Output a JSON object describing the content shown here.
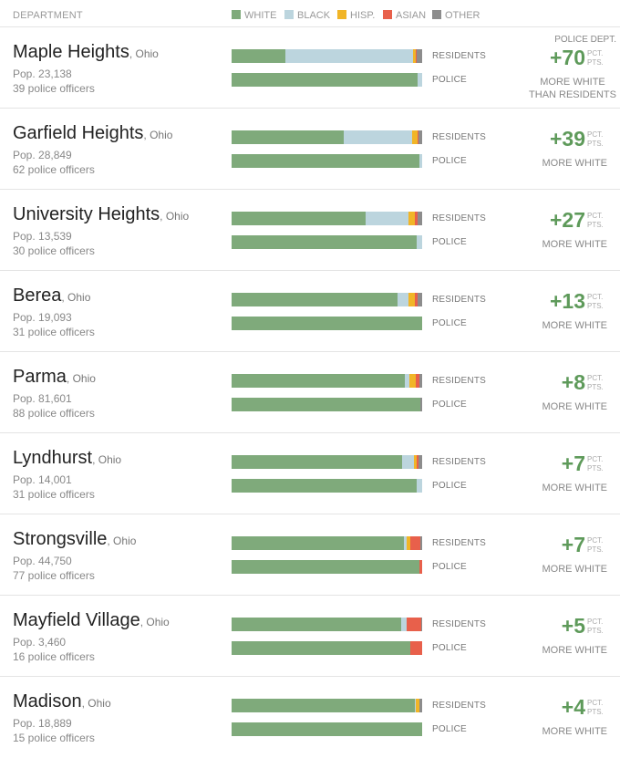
{
  "header": {
    "department_label": "DEPARTMENT"
  },
  "legend": [
    {
      "name": "WHITE",
      "color": "#7faa7b"
    },
    {
      "name": "BLACK",
      "color": "#bcd5de"
    },
    {
      "name": "HISP.",
      "color": "#f1b527"
    },
    {
      "name": "ASIAN",
      "color": "#e8604b"
    },
    {
      "name": "OTHER",
      "color": "#8c8c8c"
    }
  ],
  "labels": {
    "residents": "RESIDENTS",
    "police": "POLICE",
    "unit": "PCT. PTS.",
    "top_note": "POLICE DEPT.",
    "more_white": "MORE WHITE",
    "than_residents": "THAN RESIDENTS"
  },
  "chart_data": {
    "type": "bar",
    "orientation": "horizontal",
    "stacked": "100%",
    "series_order": [
      "WHITE",
      "BLACK",
      "HISP.",
      "ASIAN",
      "OTHER"
    ],
    "departments": [
      {
        "city": "Maple Heights",
        "state": ", Ohio",
        "pop": "Pop. 23,138",
        "officers": "39 police officers",
        "residents": [
          28,
          67,
          1.5,
          0.5,
          3
        ],
        "police": [
          97.5,
          2.5,
          0,
          0,
          0
        ],
        "gap": "+70"
      },
      {
        "city": "Garfield Heights",
        "state": ", Ohio",
        "pop": "Pop. 28,849",
        "officers": "62 police officers",
        "residents": [
          59,
          35.5,
          3,
          0.5,
          2
        ],
        "police": [
          98.5,
          1.5,
          0,
          0,
          0
        ],
        "gap": "+39"
      },
      {
        "city": "University Heights",
        "state": ", Ohio",
        "pop": "Pop. 13,539",
        "officers": "30 police officers",
        "residents": [
          70.5,
          22.5,
          3,
          1.5,
          2.5
        ],
        "police": [
          97,
          3,
          0,
          0,
          0
        ],
        "gap": "+27"
      },
      {
        "city": "Berea",
        "state": ", Ohio",
        "pop": "Pop. 19,093",
        "officers": "31 police officers",
        "residents": [
          87,
          6,
          3,
          1.5,
          2.5
        ],
        "police": [
          100,
          0,
          0,
          0,
          0
        ],
        "gap": "+13"
      },
      {
        "city": "Parma",
        "state": ", Ohio",
        "pop": "Pop. 81,601",
        "officers": "88 police officers",
        "residents": [
          91,
          2.5,
          3,
          2,
          1.5
        ],
        "police": [
          99,
          0,
          0,
          0,
          1
        ],
        "gap": "+8"
      },
      {
        "city": "Lyndhurst",
        "state": ", Ohio",
        "pop": "Pop. 14,001",
        "officers": "31 police officers",
        "residents": [
          89.5,
          6,
          1.5,
          1,
          2
        ],
        "police": [
          97,
          3,
          0,
          0,
          0
        ],
        "gap": "+7"
      },
      {
        "city": "Strongsville",
        "state": ", Ohio",
        "pop": "Pop. 44,750",
        "officers": "77 police officers",
        "residents": [
          90.5,
          1.5,
          2,
          5,
          1
        ],
        "police": [
          98.5,
          0,
          0,
          1.5,
          0
        ],
        "gap": "+7"
      },
      {
        "city": "Mayfield Village",
        "state": ", Ohio",
        "pop": "Pop. 3,460",
        "officers": "16 police officers",
        "residents": [
          89,
          3,
          0,
          7.5,
          0.5
        ],
        "police": [
          94,
          0,
          0,
          6,
          0
        ],
        "gap": "+5"
      },
      {
        "city": "Madison",
        "state": ", Ohio",
        "pop": "Pop. 18,889",
        "officers": "15 police officers",
        "residents": [
          96,
          0.5,
          2,
          0,
          1.5
        ],
        "police": [
          100,
          0,
          0,
          0,
          0
        ],
        "gap": "+4"
      }
    ]
  }
}
